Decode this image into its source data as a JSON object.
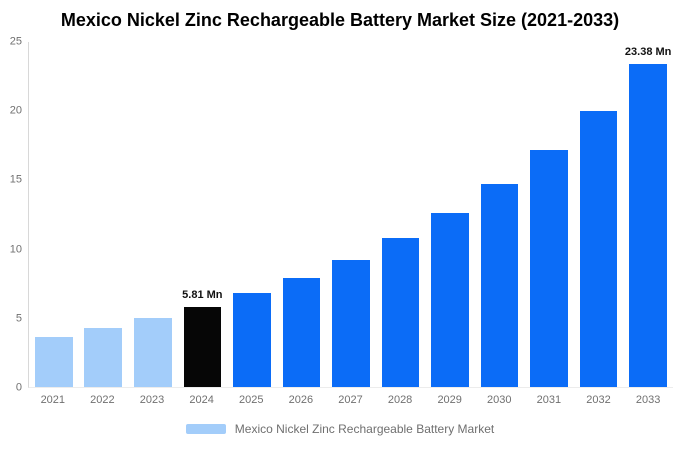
{
  "title": "Mexico Nickel Zinc Rechargeable Battery Market Size (2021-2033)",
  "chart_data": {
    "type": "bar",
    "title": "Mexico Nickel Zinc Rechargeable Battery Market Size (2021-2033)",
    "xlabel": "",
    "ylabel": "",
    "categories": [
      "2021",
      "2022",
      "2023",
      "2024",
      "2025",
      "2026",
      "2027",
      "2028",
      "2029",
      "2030",
      "2031",
      "2032",
      "2033"
    ],
    "values": [
      3.65,
      4.26,
      4.98,
      5.81,
      6.78,
      7.92,
      9.24,
      10.79,
      12.59,
      14.7,
      17.16,
      20.03,
      23.38
    ],
    "value_unit": "Mn",
    "value_labels": {
      "2024": "5.81 Mn",
      "2033": "23.38 Mn"
    },
    "ylim": [
      0,
      25
    ],
    "yticks": [
      0,
      5,
      10,
      15,
      20,
      25
    ],
    "grid": false,
    "bar_colors": [
      "#A3CDFA",
      "#A3CDFA",
      "#A3CDFA",
      "#060606",
      "#0B6CF7",
      "#0B6CF7",
      "#0B6CF7",
      "#0B6CF7",
      "#0B6CF7",
      "#0B6CF7",
      "#0B6CF7",
      "#0B6CF7",
      "#0B6CF7"
    ],
    "colors": {
      "historical": "#A3CDFA",
      "base_year": "#060606",
      "forecast": "#0B6CF7",
      "axis_line": "#D8D8D8",
      "tick_text": "#707070",
      "label_text": "#111111"
    },
    "legend": {
      "position": "bottom",
      "label": "Mexico Nickel Zinc Rechargeable Battery Market",
      "swatch_color": "#A3CDFA"
    }
  }
}
